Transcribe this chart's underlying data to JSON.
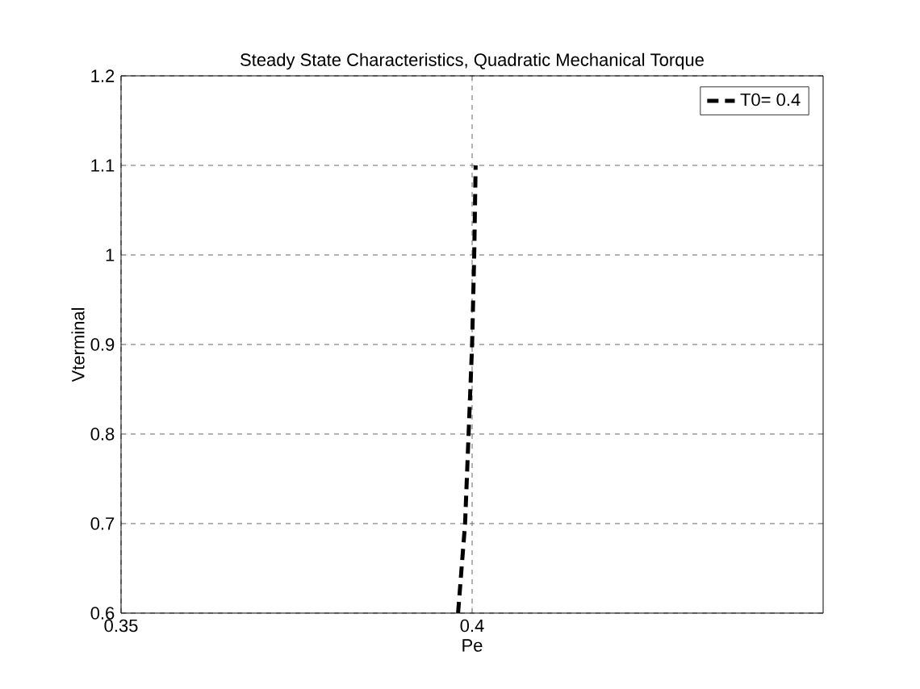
{
  "chart_data": {
    "type": "line",
    "title": "Steady State Characteristics, Quadratic Mechanical Torque",
    "xlabel": "Pe",
    "ylabel": "Vterminal",
    "series": [
      {
        "name": "T0= 0.4",
        "color": "#000000",
        "x": [
          0.398,
          0.399,
          0.3995,
          0.4,
          0.4003,
          0.4005
        ],
        "values": [
          0.6,
          0.7,
          0.8,
          0.9,
          1.0,
          1.1
        ]
      }
    ],
    "xlim": [
      0.35,
      0.45
    ],
    "ylim": [
      0.6,
      1.2
    ],
    "xticks": [
      0.35,
      0.4
    ],
    "yticks": [
      0.6,
      0.7,
      0.8,
      0.9,
      1,
      1.1,
      1.2
    ],
    "grid": true,
    "legend": "top right",
    "line_style": "dashed",
    "marker": "none"
  }
}
